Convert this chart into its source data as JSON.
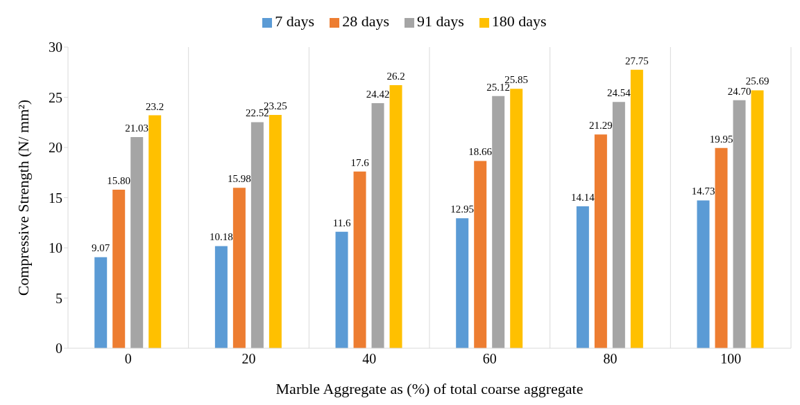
{
  "chart_data": {
    "type": "bar",
    "xlabel": "Marble Aggregate as (%) of total coarse aggregate",
    "ylabel": "Compressive Strength  (N/ mm²)",
    "categories": [
      "0",
      "20",
      "40",
      "60",
      "80",
      "100"
    ],
    "series": [
      {
        "name": "7 days",
        "color": "#5b9bd5",
        "values": [
          9.07,
          10.18,
          11.6,
          12.95,
          14.14,
          14.73
        ],
        "value_labels": [
          "9.07",
          "10.18",
          "11.6",
          "12.95",
          "14.14",
          "14.73"
        ]
      },
      {
        "name": "28 days",
        "color": "#ed7d31",
        "values": [
          15.8,
          15.98,
          17.6,
          18.66,
          21.29,
          19.95
        ],
        "value_labels": [
          "15.80",
          "15.98",
          "17.6",
          "18.66",
          "21.29",
          "19.95"
        ]
      },
      {
        "name": "91 days",
        "color": "#a5a5a5",
        "values": [
          21.03,
          22.52,
          24.42,
          25.12,
          24.54,
          24.7
        ],
        "value_labels": [
          "21.03",
          "22.52",
          "24.42",
          "25.12",
          "24.54",
          "24.70"
        ]
      },
      {
        "name": "180 days",
        "color": "#ffc000",
        "values": [
          23.2,
          23.25,
          26.2,
          25.85,
          27.75,
          25.69
        ],
        "value_labels": [
          "23.2",
          "23.25",
          "26.2",
          "25.85",
          "27.75",
          "25.69"
        ]
      }
    ],
    "ylim": [
      0,
      30
    ],
    "yticks": [
      0,
      5,
      10,
      15,
      20,
      25,
      30
    ],
    "grid": "x",
    "legend": "top"
  }
}
